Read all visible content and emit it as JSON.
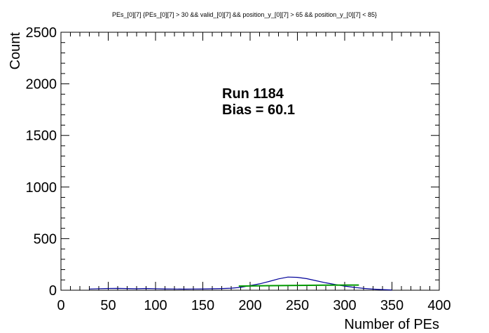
{
  "chart_data": {
    "type": "line",
    "title": "PEs_[0][7]  {PEs_[0][7] > 30 && valid_[0][7] && position_y_[0][7] > 65 && position_y_[0][7] < 85}",
    "xlabel": "Number of PEs",
    "ylabel": "Count",
    "xlim": [
      0,
      400
    ],
    "ylim": [
      0,
      2500
    ],
    "x_ticks": [
      "0",
      "50",
      "100",
      "150",
      "200",
      "250",
      "300",
      "350",
      "400"
    ],
    "y_ticks": [
      "0",
      "500",
      "1000",
      "1500",
      "2000",
      "2500"
    ],
    "annotation": {
      "line1": "Run 1184",
      "line2": "Bias = 60.1"
    },
    "grid": false,
    "series": [
      {
        "style": "histogram",
        "color": "#000099",
        "x": [
          30,
          40,
          50,
          60,
          70,
          80,
          90,
          100,
          110,
          120,
          130,
          140,
          150,
          160,
          170,
          180,
          190,
          200,
          210,
          220,
          230,
          240,
          250,
          260,
          270,
          280,
          290,
          300,
          310,
          320,
          330,
          340,
          350
        ],
        "values": [
          12,
          15,
          17,
          18,
          16,
          14,
          17,
          15,
          13,
          12,
          11,
          12,
          13,
          14,
          16,
          20,
          28,
          45,
          62,
          85,
          110,
          128,
          125,
          112,
          92,
          72,
          55,
          40,
          28,
          18,
          11,
          6,
          3
        ]
      },
      {
        "style": "fit",
        "color": "#009900",
        "x": [
          188,
          220,
          250,
          280,
          315
        ],
        "values": [
          40,
          44,
          47,
          49,
          50
        ]
      }
    ]
  }
}
